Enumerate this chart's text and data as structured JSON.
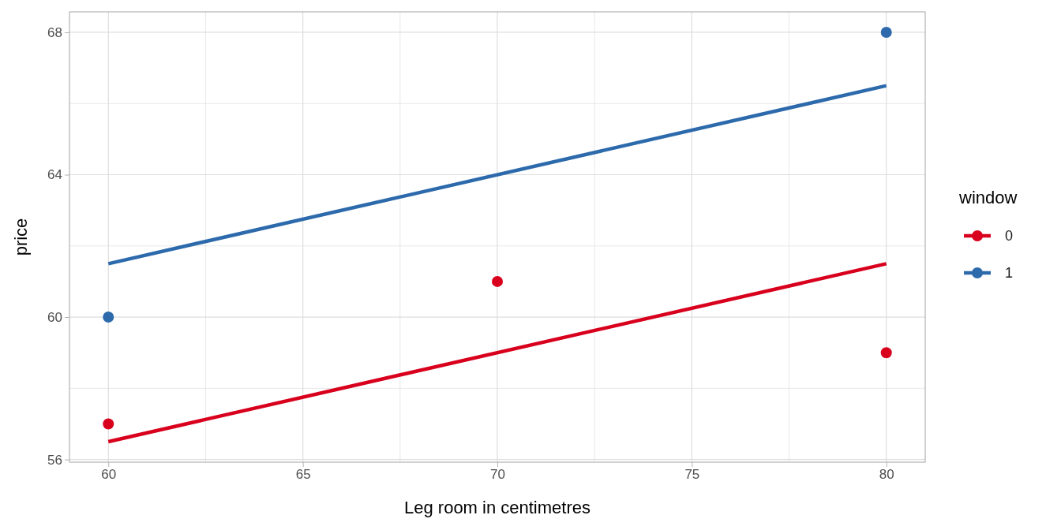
{
  "chart_data": {
    "type": "scatter",
    "xlabel": "Leg room in centimetres",
    "ylabel": "price",
    "legend_title": "window",
    "legend": "right",
    "grid": true,
    "marker": "circle",
    "xlim": [
      59,
      81
    ],
    "ylim": [
      55.925,
      68.575
    ],
    "xticks": [
      60,
      {
        "value": 62.5,
        "label": null
      },
      65,
      {
        "value": 67.5,
        "label": null
      },
      70,
      {
        "value": 72.5,
        "label": null
      },
      75,
      {
        "value": 77.5,
        "label": null
      },
      80
    ],
    "yticks": [
      56,
      {
        "value": 58,
        "label": null
      },
      60,
      {
        "value": 62,
        "label": null
      },
      64,
      {
        "value": 66,
        "label": null
      },
      68
    ],
    "series": [
      {
        "type": "line",
        "color": "#d8001d",
        "x": [
          60,
          80
        ],
        "values": [
          56.5,
          61.5
        ],
        "line_style": "solid",
        "marker": "none"
      },
      {
        "type": "line",
        "color": "#2c6aac",
        "x": [
          60,
          80
        ],
        "values": [
          61.5,
          66.5
        ],
        "line_style": "solid",
        "marker": "none"
      },
      {
        "name": "0",
        "color": "#d8001d",
        "x": [
          60,
          70,
          80
        ],
        "values": [
          57,
          61,
          59
        ]
      },
      {
        "name": "1",
        "color": "#2c6aac",
        "x": [
          60,
          80
        ],
        "values": [
          60,
          68
        ]
      }
    ]
  }
}
